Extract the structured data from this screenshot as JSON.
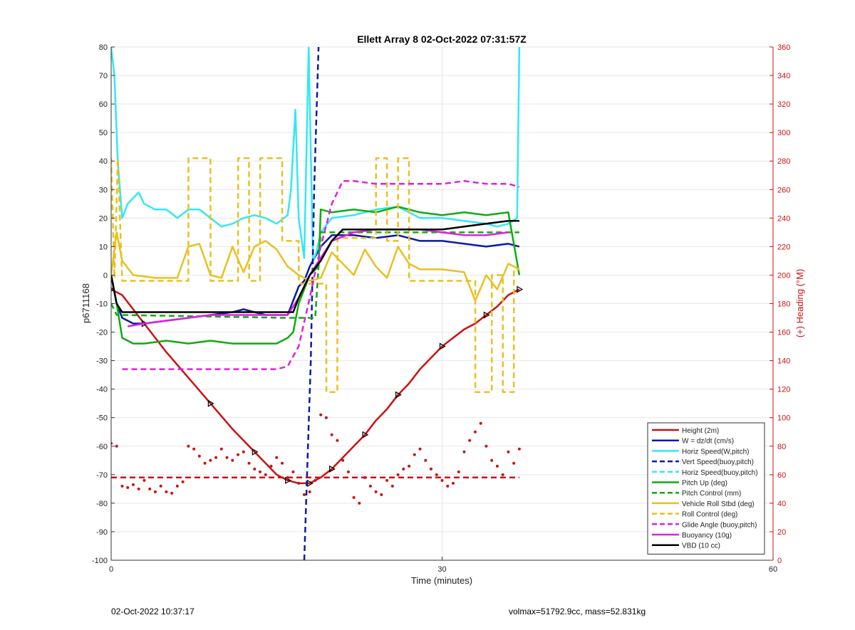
{
  "chart_data": {
    "type": "line",
    "title": "Ellett Array 8 02-Oct-2022 07:31:57Z",
    "xlabel": "Time (minutes)",
    "ylabel_left": "p6711168",
    "ylabel_right": "(+) Heading (°M)",
    "xlim": [
      0,
      60
    ],
    "ylim_left": [
      -100,
      80
    ],
    "ylim_right": [
      0,
      360
    ],
    "x_ticks": [
      0,
      30,
      60
    ],
    "y_ticks_left": [
      -100,
      -90,
      -80,
      -70,
      -60,
      -50,
      -40,
      -30,
      -20,
      -10,
      0,
      10,
      20,
      30,
      40,
      50,
      60,
      70,
      80
    ],
    "y_ticks_right": [
      0,
      20,
      40,
      60,
      80,
      100,
      120,
      140,
      160,
      180,
      200,
      220,
      240,
      260,
      280,
      300,
      320,
      340,
      360
    ],
    "grid": true,
    "legend_position": "bottom-right",
    "series": [
      {
        "name": "Height (2m)",
        "color": "#cc1111",
        "style": "solid",
        "axis": "left",
        "x": [
          0,
          0.5,
          1,
          3,
          5,
          7,
          9,
          11,
          12,
          13,
          14,
          15,
          16,
          17,
          17.5,
          18,
          18.5,
          19,
          20,
          21,
          22,
          23,
          24,
          25,
          26,
          27,
          28,
          30,
          32,
          33,
          34,
          35,
          36,
          37
        ],
        "y": [
          -5,
          -6,
          -7,
          -17,
          -27,
          -36,
          -45,
          -54,
          -58,
          -62,
          -66,
          -70,
          -72,
          -73,
          -73,
          -73,
          -72,
          -71,
          -68,
          -64,
          -60,
          -56,
          -51,
          -47,
          -42,
          -38,
          -33,
          -25,
          -19,
          -17,
          -14,
          -11,
          -7,
          -5
        ]
      },
      {
        "name": "W = dz/dt (cm/s)",
        "color": "#0a1aaa",
        "style": "solid",
        "axis": "left",
        "x": [
          0,
          0.5,
          1,
          2,
          3,
          5,
          7,
          9,
          11,
          12,
          13,
          14,
          15,
          16,
          17,
          17.5,
          18,
          19,
          20,
          22,
          24,
          26,
          28,
          30,
          32,
          34,
          36,
          37
        ],
        "y": [
          0,
          -10,
          -15,
          -17,
          -17,
          -16,
          -15,
          -14,
          -13,
          -12,
          -13,
          -14,
          -14,
          -14,
          -4,
          -2,
          3,
          10,
          14,
          14,
          13,
          14,
          12,
          12,
          11,
          10,
          11,
          10
        ]
      },
      {
        "name": "Horiz Speed(W,pitch)",
        "color": "#33e8f0",
        "style": "solid",
        "axis": "left",
        "x": [
          0,
          0.3,
          0.6,
          1,
          1.5,
          2,
          2.5,
          3,
          4,
          5,
          6,
          7,
          8,
          9,
          10,
          11,
          12,
          13,
          14,
          15,
          16,
          16.3,
          16.7,
          17,
          17.5,
          17.9,
          18.3,
          18.6,
          19,
          20,
          22,
          24,
          26,
          28,
          30,
          32,
          34,
          35,
          36,
          36.8,
          37
        ],
        "y": [
          80,
          70,
          40,
          20,
          25,
          27,
          29,
          25,
          23,
          23,
          20,
          23,
          23,
          20,
          17,
          18,
          20,
          21,
          20,
          18,
          21,
          30,
          58,
          20,
          6,
          80,
          5,
          8,
          15,
          20,
          21,
          23,
          24,
          20,
          20,
          19,
          18,
          17,
          18,
          20,
          80
        ]
      },
      {
        "name": "Vert Speed(buoy,pitch)",
        "color": "#0a1aaa",
        "style": "dashed",
        "axis": "left",
        "x": [
          17.5,
          18.1,
          18.4,
          18.8
        ],
        "y": [
          -100,
          -30,
          30,
          80
        ]
      },
      {
        "name": "Horiz Speed(buoy,pitch)",
        "color": "#33e8f0",
        "style": "dashed",
        "axis": "left",
        "x": [],
        "y": []
      },
      {
        "name": "Pitch Up (deg)",
        "color": "#11aa11",
        "style": "solid",
        "axis": "left",
        "x": [
          0,
          0.5,
          1,
          2,
          3,
          5,
          7,
          9,
          11,
          13,
          15,
          16,
          16.5,
          17,
          18,
          18.8,
          19,
          20,
          22,
          24,
          26,
          28,
          30,
          32,
          34,
          36,
          37
        ],
        "y": [
          0,
          -10,
          -22,
          -24,
          -24,
          -23,
          -24,
          -23,
          -24,
          -24,
          -24,
          -22,
          -20,
          -10,
          0,
          3,
          23,
          22,
          23,
          22,
          24,
          22,
          21,
          22,
          21,
          22,
          0
        ]
      },
      {
        "name": "Pitch Control (mm)",
        "color": "#11aa11",
        "style": "dashed",
        "axis": "left",
        "x": [
          0,
          0.5,
          1,
          16,
          16.5,
          18.5,
          19,
          37
        ],
        "y": [
          -10,
          -14,
          -14,
          -15,
          -15,
          -15,
          15,
          15
        ]
      },
      {
        "name": "Vehicle Roll Stbd (deg)",
        "color": "#e8c020",
        "style": "solid",
        "axis": "left",
        "x": [
          0,
          0.5,
          1,
          2,
          4,
          6,
          7,
          8,
          9,
          10,
          11,
          12,
          13,
          14,
          15,
          16,
          17,
          18,
          19,
          20,
          21,
          22,
          23,
          24,
          25,
          26,
          27,
          28,
          30,
          32,
          33,
          34,
          35,
          36,
          37
        ],
        "y": [
          0,
          15,
          5,
          0,
          -1,
          -1,
          10,
          11,
          0,
          -1,
          10,
          1,
          10,
          12,
          9,
          3,
          0,
          -2,
          -1,
          8,
          4,
          0,
          9,
          3,
          -1,
          10,
          4,
          2,
          2,
          1,
          -9,
          0,
          -5,
          4,
          2
        ]
      },
      {
        "name": "Roll Control (deg)",
        "color": "#e8c020",
        "style": "dashed",
        "axis": "left",
        "x": [
          0,
          0.3,
          0.6,
          1,
          7,
          7.01,
          9,
          9.01,
          11.5,
          11.51,
          12.5,
          12.51,
          13.5,
          13.51,
          15.5,
          15.51,
          17,
          17.01,
          19.5,
          19.51,
          20.5,
          20.51,
          24,
          24.01,
          25,
          25.01,
          26,
          26.01,
          27,
          27.01,
          33,
          33.01,
          34.5,
          34.51,
          35.5,
          35.51,
          36.5,
          36.51,
          37
        ],
        "y": [
          41,
          -1,
          41,
          -2,
          -2,
          41,
          41,
          -2,
          -2,
          41,
          41,
          -2,
          -2,
          41,
          41,
          12,
          12,
          -3,
          -3,
          -41,
          -41,
          13,
          13,
          41,
          41,
          12,
          12,
          41,
          41,
          -2,
          -2,
          -41,
          -41,
          0,
          0,
          -41,
          -41,
          2,
          2
        ]
      },
      {
        "name": "Glide Angle (buoy,pitch)",
        "color": "#dd22dd",
        "style": "dashed",
        "axis": "left",
        "x": [
          1,
          3,
          5,
          7,
          9,
          11,
          13,
          15,
          16,
          17,
          18,
          19,
          20,
          21,
          22,
          24,
          26,
          28,
          30,
          32,
          34,
          36,
          37
        ],
        "y": [
          -33,
          -33,
          -33,
          -33,
          -33,
          -33,
          -33,
          -33,
          -32,
          -25,
          -8,
          10,
          25,
          33,
          33,
          32,
          32,
          32,
          32,
          33,
          32,
          32,
          31
        ]
      },
      {
        "name": "Buoyancy (10g)",
        "color": "#dd22dd",
        "style": "solid",
        "axis": "left",
        "x": [
          1.5,
          3,
          5,
          7,
          9,
          11,
          13,
          15,
          16,
          17,
          18,
          19,
          20,
          22,
          24,
          26,
          28,
          30,
          32,
          34,
          36
        ],
        "y": [
          -18,
          -17,
          -16,
          -15,
          -14,
          -14,
          -14,
          -14,
          -14,
          -8,
          0,
          6,
          12,
          15,
          16,
          16,
          16,
          15,
          14,
          14,
          15
        ]
      },
      {
        "name": "VBD (10 cc)",
        "color": "#000000",
        "style": "solid",
        "axis": "left",
        "x": [
          0,
          0.5,
          1,
          16,
          16.5,
          17,
          18,
          19,
          20,
          21,
          22,
          24,
          26,
          28,
          30,
          32,
          34,
          36,
          37
        ],
        "y": [
          0,
          -10,
          -13,
          -13,
          -13,
          -8,
          0,
          5,
          12,
          16,
          16,
          16,
          16,
          16,
          16,
          17,
          18,
          19,
          19
        ]
      },
      {
        "name": "Heading scatter",
        "color": "#cc1111",
        "style": "dots",
        "axis": "right",
        "legend": false,
        "x": [
          0,
          0.5,
          1,
          1.5,
          2,
          2.5,
          3,
          3.5,
          4,
          4.5,
          5,
          5.5,
          6,
          6.5,
          7,
          7.5,
          8,
          8.5,
          9,
          9.5,
          10,
          10.5,
          11,
          11.5,
          12,
          12.5,
          13,
          13.5,
          14,
          14.5,
          15,
          15.5,
          16,
          16.5,
          17,
          17.5,
          18,
          18.5,
          19,
          19.5,
          20,
          20.5,
          21,
          21.5,
          22,
          22.5,
          23,
          23.5,
          24,
          24.5,
          25,
          25.5,
          26,
          26.5,
          27,
          27.5,
          28,
          28.5,
          29,
          29.5,
          30,
          30.5,
          31,
          31.5,
          32,
          32.5,
          33,
          33.5,
          34,
          34.5,
          35,
          35.5,
          36,
          36.5,
          37
        ],
        "y": [
          82,
          80,
          52,
          51,
          53,
          50,
          56,
          50,
          48,
          52,
          48,
          47,
          52,
          55,
          80,
          78,
          73,
          68,
          70,
          72,
          78,
          72,
          70,
          74,
          76,
          68,
          64,
          62,
          60,
          66,
          72,
          68,
          58,
          62,
          54,
          46,
          48,
          56,
          102,
          100,
          88,
          84,
          70,
          62,
          44,
          40,
          58,
          52,
          48,
          46,
          56,
          52,
          60,
          64,
          66,
          74,
          78,
          70,
          64,
          60,
          56,
          52,
          54,
          62,
          76,
          84,
          90,
          96,
          80,
          70,
          66,
          60,
          76,
          68,
          78
        ]
      },
      {
        "name": "Heading target",
        "color": "#cc1111",
        "style": "dashed",
        "axis": "right",
        "legend": false,
        "x": [
          0,
          37
        ],
        "y": [
          58,
          58
        ]
      }
    ]
  },
  "footer": {
    "left_timestamp": "02-Oct-2022 10:37:17",
    "right_info": "volmax=51792.9cc, mass=52.831kg"
  }
}
